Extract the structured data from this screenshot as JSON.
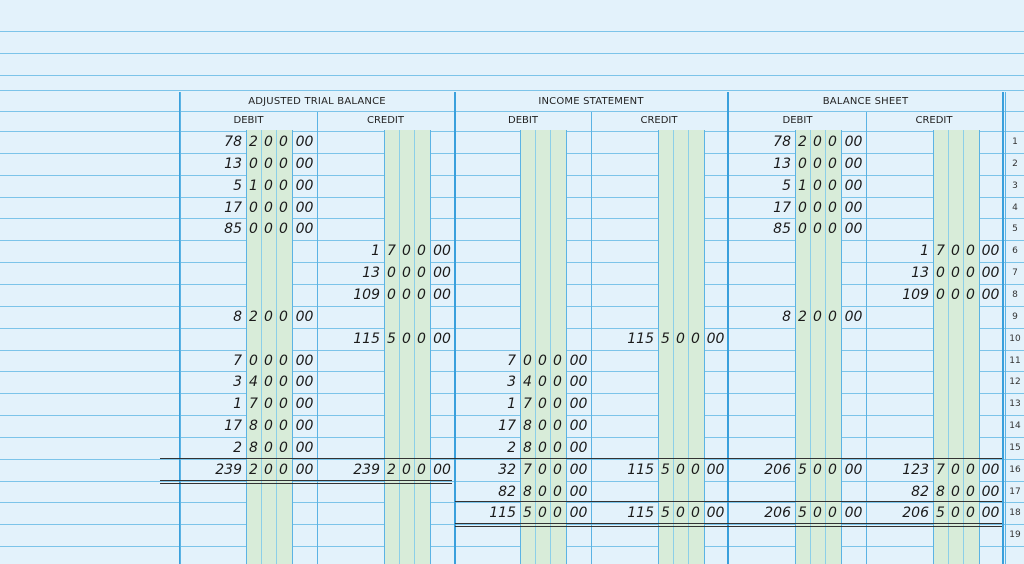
{
  "sections": [
    {
      "key": "adjusted_trial_balance",
      "title": "ADJUSTED TRIAL BALANCE",
      "debit_label": "DEBIT",
      "credit_label": "CREDIT"
    },
    {
      "key": "income_statement",
      "title": "INCOME STATEMENT",
      "debit_label": "DEBIT",
      "credit_label": "CREDIT"
    },
    {
      "key": "balance_sheet",
      "title": "BALANCE SHEET",
      "debit_label": "DEBIT",
      "credit_label": "CREDIT"
    }
  ],
  "row_numbers": [
    "1",
    "2",
    "3",
    "4",
    "5",
    "6",
    "7",
    "8",
    "9",
    "10",
    "11",
    "12",
    "13",
    "14",
    "15",
    "16",
    "17",
    "18",
    "19"
  ],
  "amounts": [
    {
      "row": 1,
      "col": 0,
      "thousands": "78",
      "hundreds": "2 0 0",
      "cents": "00"
    },
    {
      "row": 2,
      "col": 0,
      "thousands": "13",
      "hundreds": "0 0 0",
      "cents": "00"
    },
    {
      "row": 3,
      "col": 0,
      "thousands": "5",
      "hundreds": "1 0 0",
      "cents": "00"
    },
    {
      "row": 4,
      "col": 0,
      "thousands": "17",
      "hundreds": "0 0 0",
      "cents": "00"
    },
    {
      "row": 5,
      "col": 0,
      "thousands": "85",
      "hundreds": "0 0 0",
      "cents": "00"
    },
    {
      "row": 6,
      "col": 1,
      "thousands": "1",
      "hundreds": "7 0 0",
      "cents": "00"
    },
    {
      "row": 7,
      "col": 1,
      "thousands": "13",
      "hundreds": "0 0 0",
      "cents": "00"
    },
    {
      "row": 8,
      "col": 1,
      "thousands": "109",
      "hundreds": "0 0 0",
      "cents": "00"
    },
    {
      "row": 9,
      "col": 0,
      "thousands": "8",
      "hundreds": "2 0 0",
      "cents": "00"
    },
    {
      "row": 10,
      "col": 1,
      "thousands": "115",
      "hundreds": "5 0 0",
      "cents": "00"
    },
    {
      "row": 11,
      "col": 0,
      "thousands": "7",
      "hundreds": "0 0 0",
      "cents": "00"
    },
    {
      "row": 12,
      "col": 0,
      "thousands": "3",
      "hundreds": "4 0 0",
      "cents": "00"
    },
    {
      "row": 13,
      "col": 0,
      "thousands": "1",
      "hundreds": "7 0 0",
      "cents": "00"
    },
    {
      "row": 14,
      "col": 0,
      "thousands": "17",
      "hundreds": "8 0 0",
      "cents": "00"
    },
    {
      "row": 15,
      "col": 0,
      "thousands": "2",
      "hundreds": "8 0 0",
      "cents": "00"
    },
    {
      "row": 16,
      "col": 0,
      "thousands": "239",
      "hundreds": "2 0 0",
      "cents": "00"
    },
    {
      "row": 16,
      "col": 1,
      "thousands": "239",
      "hundreds": "2 0 0",
      "cents": "00"
    },
    {
      "row": 10,
      "col": 3,
      "thousands": "115",
      "hundreds": "5 0 0",
      "cents": "00"
    },
    {
      "row": 11,
      "col": 2,
      "thousands": "7",
      "hundreds": "0 0 0",
      "cents": "00"
    },
    {
      "row": 12,
      "col": 2,
      "thousands": "3",
      "hundreds": "4 0 0",
      "cents": "00"
    },
    {
      "row": 13,
      "col": 2,
      "thousands": "1",
      "hundreds": "7 0 0",
      "cents": "00"
    },
    {
      "row": 14,
      "col": 2,
      "thousands": "17",
      "hundreds": "8 0 0",
      "cents": "00"
    },
    {
      "row": 15,
      "col": 2,
      "thousands": "2",
      "hundreds": "8 0 0",
      "cents": "00"
    },
    {
      "row": 16,
      "col": 2,
      "thousands": "32",
      "hundreds": "7 0 0",
      "cents": "00"
    },
    {
      "row": 16,
      "col": 3,
      "thousands": "115",
      "hundreds": "5 0 0",
      "cents": "00"
    },
    {
      "row": 17,
      "col": 2,
      "thousands": "82",
      "hundreds": "8 0 0",
      "cents": "00"
    },
    {
      "row": 18,
      "col": 2,
      "thousands": "115",
      "hundreds": "5 0 0",
      "cents": "00"
    },
    {
      "row": 18,
      "col": 3,
      "thousands": "115",
      "hundreds": "5 0 0",
      "cents": "00"
    },
    {
      "row": 1,
      "col": 4,
      "thousands": "78",
      "hundreds": "2 0 0",
      "cents": "00"
    },
    {
      "row": 2,
      "col": 4,
      "thousands": "13",
      "hundreds": "0 0 0",
      "cents": "00"
    },
    {
      "row": 3,
      "col": 4,
      "thousands": "5",
      "hundreds": "1 0 0",
      "cents": "00"
    },
    {
      "row": 4,
      "col": 4,
      "thousands": "17",
      "hundreds": "0 0 0",
      "cents": "00"
    },
    {
      "row": 5,
      "col": 4,
      "thousands": "85",
      "hundreds": "0 0 0",
      "cents": "00"
    },
    {
      "row": 6,
      "col": 5,
      "thousands": "1",
      "hundreds": "7 0 0",
      "cents": "00"
    },
    {
      "row": 7,
      "col": 5,
      "thousands": "13",
      "hundreds": "0 0 0",
      "cents": "00"
    },
    {
      "row": 8,
      "col": 5,
      "thousands": "109",
      "hundreds": "0 0 0",
      "cents": "00"
    },
    {
      "row": 9,
      "col": 4,
      "thousands": "8",
      "hundreds": "2 0 0",
      "cents": "00"
    },
    {
      "row": 16,
      "col": 4,
      "thousands": "206",
      "hundreds": "5 0 0",
      "cents": "00"
    },
    {
      "row": 16,
      "col": 5,
      "thousands": "123",
      "hundreds": "7 0 0",
      "cents": "00"
    },
    {
      "row": 17,
      "col": 5,
      "thousands": "82",
      "hundreds": "8 0 0",
      "cents": "00"
    },
    {
      "row": 18,
      "col": 4,
      "thousands": "206",
      "hundreds": "5 0 0",
      "cents": "00"
    },
    {
      "row": 18,
      "col": 5,
      "thousands": "206",
      "hundreds": "5 0 0",
      "cents": "00"
    }
  ]
}
